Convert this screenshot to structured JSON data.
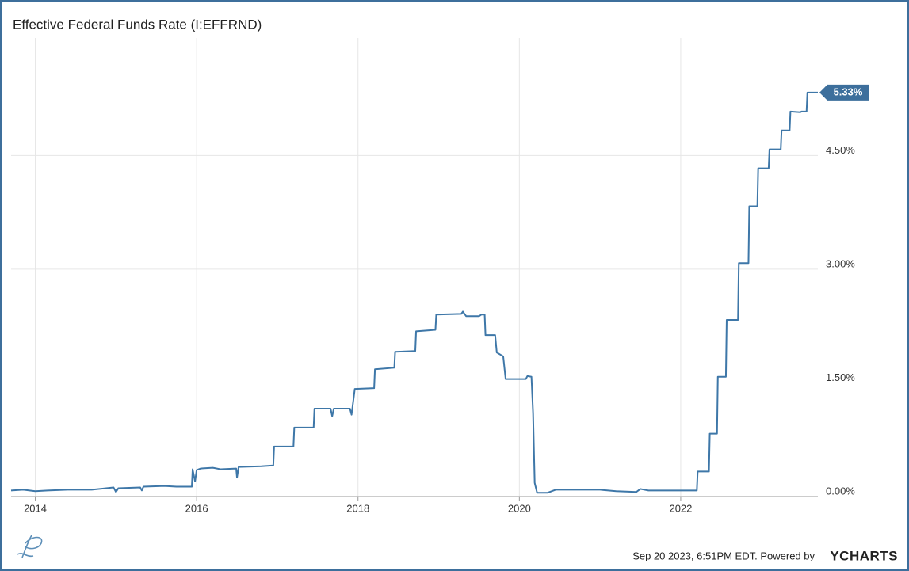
{
  "chart_data": {
    "type": "line",
    "title": "Effective Federal Funds Rate (I:EFFRND)",
    "x": [
      2013.7,
      2013.85,
      2014,
      2014.15,
      2014.4,
      2014.7,
      2014.97,
      2015,
      2015.03,
      2015.3,
      2015.32,
      2015.34,
      2015.6,
      2015.75,
      2015.94,
      2015.95,
      2015.98,
      2016,
      2016.05,
      2016.2,
      2016.3,
      2016.49,
      2016.5,
      2016.52,
      2016.8,
      2016.95,
      2016.96,
      2017.2,
      2017.21,
      2017.45,
      2017.46,
      2017.66,
      2017.68,
      2017.7,
      2017.9,
      2017.92,
      2017.96,
      2018.2,
      2018.21,
      2018.45,
      2018.46,
      2018.71,
      2018.72,
      2018.96,
      2018.97,
      2019.28,
      2019.3,
      2019.34,
      2019.5,
      2019.53,
      2019.57,
      2019.58,
      2019.7,
      2019.72,
      2019.8,
      2019.83,
      2020.08,
      2020.1,
      2020.15,
      2020.17,
      2020.19,
      2020.22,
      2020.35,
      2020.45,
      2020.7,
      2021,
      2021.2,
      2021.45,
      2021.5,
      2021.6,
      2022.2,
      2022.21,
      2022.35,
      2022.36,
      2022.45,
      2022.46,
      2022.56,
      2022.57,
      2022.71,
      2022.72,
      2022.84,
      2022.85,
      2022.95,
      2022.96,
      2023.09,
      2023.1,
      2023.24,
      2023.25,
      2023.35,
      2023.36,
      2023.48,
      2023.5,
      2023.56,
      2023.57,
      2023.7
    ],
    "series": [
      {
        "color": "#3e77a8",
        "values": [
          0.08,
          0.09,
          0.07,
          0.08,
          0.09,
          0.09,
          0.12,
          0.06,
          0.11,
          0.12,
          0.08,
          0.13,
          0.14,
          0.13,
          0.13,
          0.36,
          0.2,
          0.35,
          0.37,
          0.38,
          0.36,
          0.37,
          0.25,
          0.39,
          0.4,
          0.41,
          0.66,
          0.66,
          0.91,
          0.91,
          1.16,
          1.16,
          1.06,
          1.16,
          1.16,
          1.08,
          1.42,
          1.43,
          1.68,
          1.7,
          1.91,
          1.92,
          2.18,
          2.2,
          2.4,
          2.41,
          2.44,
          2.38,
          2.38,
          2.4,
          2.4,
          2.13,
          2.13,
          1.9,
          1.85,
          1.55,
          1.55,
          1.59,
          1.58,
          1.1,
          0.18,
          0.05,
          0.05,
          0.09,
          0.09,
          0.09,
          0.07,
          0.06,
          0.1,
          0.08,
          0.08,
          0.33,
          0.33,
          0.83,
          0.83,
          1.58,
          1.58,
          2.33,
          2.33,
          3.08,
          3.08,
          3.83,
          3.83,
          4.33,
          4.33,
          4.58,
          4.58,
          4.83,
          4.83,
          5.08,
          5.07,
          5.08,
          5.08,
          5.33,
          5.33
        ]
      }
    ],
    "xlim": [
      2013.7,
      2023.7
    ],
    "xticks": [
      2014,
      2016,
      2018,
      2020,
      2022
    ],
    "ylim": [
      0,
      6.05
    ],
    "yticks": [
      {
        "value": 0,
        "label": "0.00%"
      },
      {
        "value": 1.5,
        "label": "1.50%"
      },
      {
        "value": 3,
        "label": "3.00%"
      },
      {
        "value": 4.5,
        "label": "4.50%"
      }
    ],
    "grid": true,
    "annotation": {
      "value": 5.33,
      "label": "5.33%",
      "color": "#3d6f9c"
    },
    "footer": {
      "timestamp": "Sep 20 2023, 6:51PM EDT. Powered by",
      "brand": "YCHARTS"
    }
  }
}
